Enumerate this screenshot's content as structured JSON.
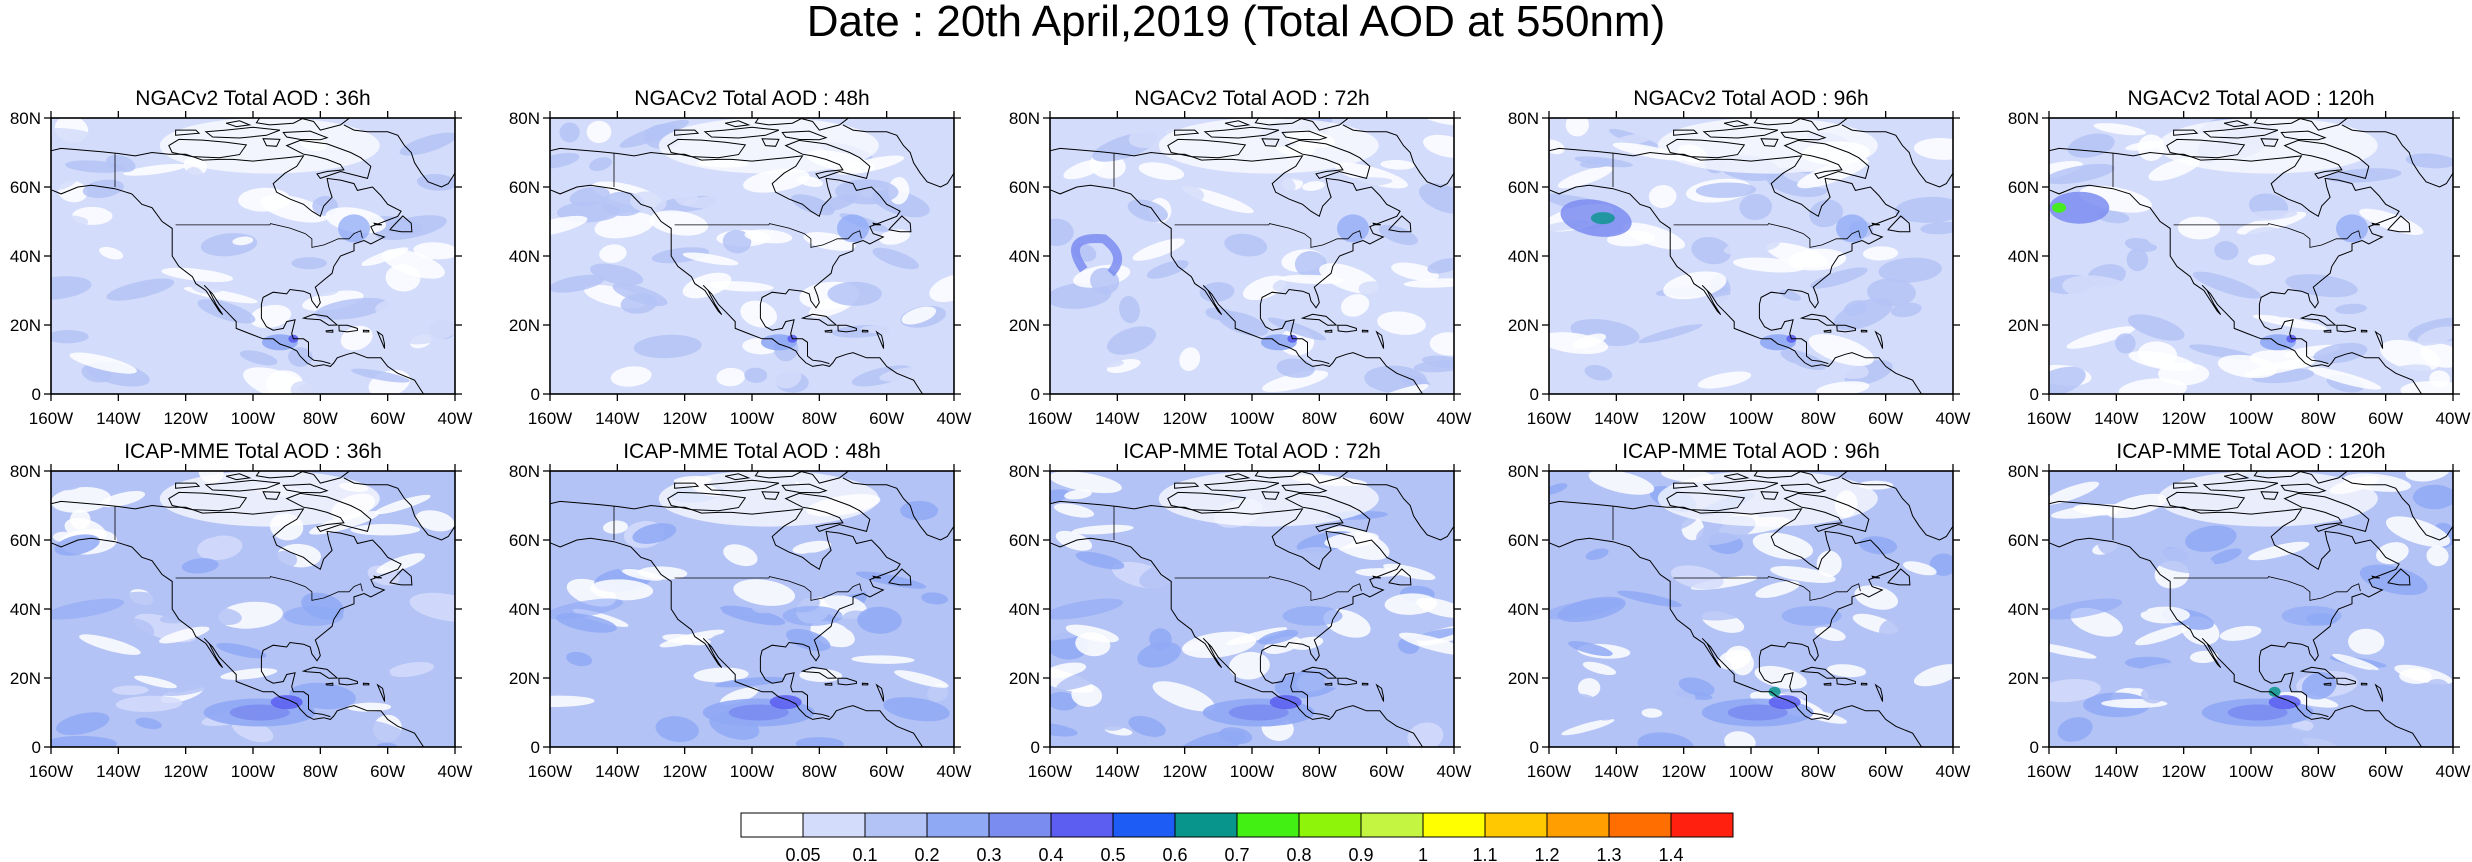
{
  "title": "Date : 20th April,2019 (Total AOD at 550nm)",
  "lon_labels": [
    "160W",
    "140W",
    "120W",
    "100W",
    "80W",
    "60W",
    "40W"
  ],
  "lat_labels": [
    "80N",
    "60N",
    "40N",
    "20N",
    "0"
  ],
  "panels": [
    {
      "title": "NGACv2 Total AOD : 36h"
    },
    {
      "title": "NGACv2 Total AOD : 48h"
    },
    {
      "title": "NGACv2 Total AOD : 72h"
    },
    {
      "title": "NGACv2 Total AOD : 96h"
    },
    {
      "title": "NGACv2 Total AOD : 120h"
    },
    {
      "title": "ICAP-MME Total AOD : 36h"
    },
    {
      "title": "ICAP-MME Total AOD : 48h"
    },
    {
      "title": "ICAP-MME Total AOD : 72h"
    },
    {
      "title": "ICAP-MME Total AOD : 96h"
    },
    {
      "title": "ICAP-MME Total AOD : 120h"
    }
  ],
  "colorbar": {
    "colors": [
      "#ffffff",
      "#d3dcfa",
      "#b4c3f6",
      "#8fa9f5",
      "#7b8cf0",
      "#5b5ef0",
      "#1d5cf5",
      "#08968c",
      "#43f014",
      "#8ef50a",
      "#c4f541",
      "#ffff00",
      "#ffc800",
      "#ff9e00",
      "#ff6e00",
      "#ff2010"
    ],
    "labels": [
      "0.05",
      "0.1",
      "0.2",
      "0.3",
      "0.4",
      "0.5",
      "0.6",
      "0.7",
      "0.8",
      "0.9",
      "1",
      "1.1",
      "1.2",
      "1.3",
      "1.4"
    ]
  }
}
